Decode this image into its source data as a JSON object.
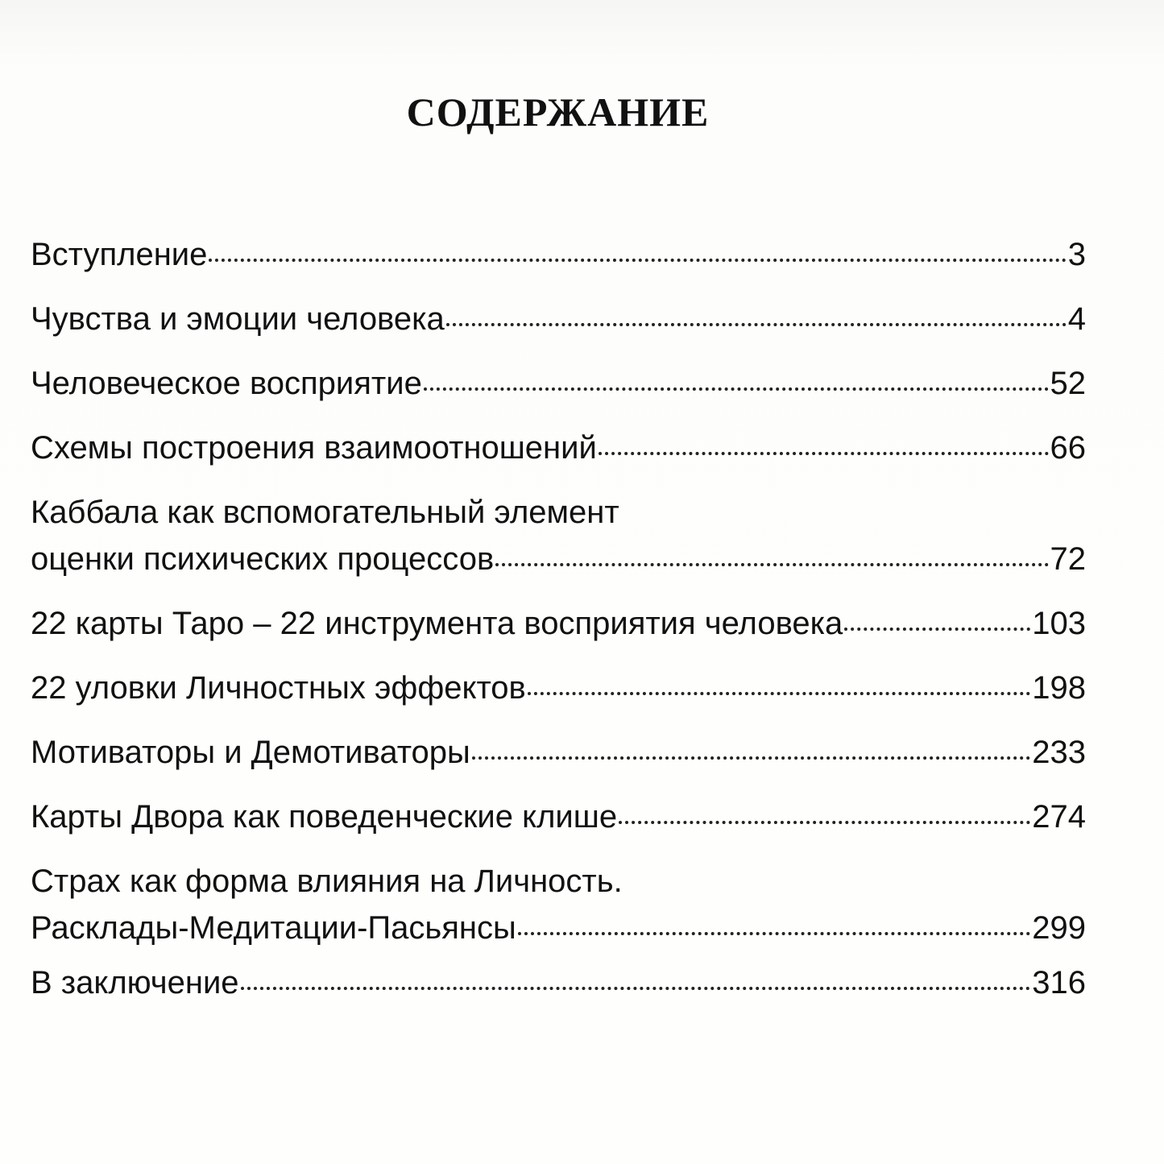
{
  "title": "СОДЕРЖАНИЕ",
  "entries": [
    {
      "lines": [
        "Вступление"
      ],
      "page": 3
    },
    {
      "lines": [
        "Чувства и эмоции человека"
      ],
      "page": 4
    },
    {
      "lines": [
        "Человеческое восприятие"
      ],
      "page": 52
    },
    {
      "lines": [
        "Схемы построения взаимоотношений"
      ],
      "page": 66
    },
    {
      "lines": [
        "Каббала как вспомогательный элемент",
        "оценки психических процессов"
      ],
      "page": 72
    },
    {
      "lines": [
        "22 карты Таро – 22 инструмента восприятия человека"
      ],
      "page": 103
    },
    {
      "lines": [
        "22 уловки Личностных эффектов"
      ],
      "page": 198
    },
    {
      "lines": [
        "Мотиваторы и Демотиваторы"
      ],
      "page": 233
    },
    {
      "lines": [
        "Карты Двора как поведенческие клише"
      ],
      "page": 274
    },
    {
      "lines": [
        "Страх как форма влияния на Личность.",
        "Расклады-Медитации-Пасьянсы"
      ],
      "page": 299
    },
    {
      "lines": [
        "В заключение"
      ],
      "page": 316
    }
  ]
}
